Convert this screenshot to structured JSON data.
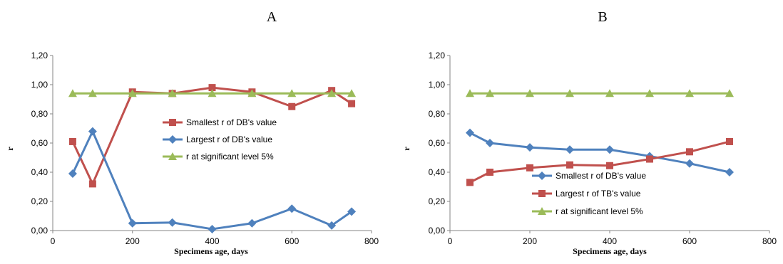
{
  "chart_data": [
    {
      "type": "line",
      "title": "A",
      "xlabel": "Specimens age, days",
      "ylabel": "r",
      "xlim": [
        0,
        800
      ],
      "ylim": [
        0,
        1.2
      ],
      "xticks": [
        0,
        200,
        400,
        600,
        800
      ],
      "xtick_labels": [
        "0",
        "200",
        "400",
        "600",
        "800"
      ],
      "yticks": [
        0,
        0.2,
        0.4,
        0.6,
        0.8,
        1.0,
        1.2
      ],
      "ytick_labels": [
        "0,00",
        "0,20",
        "0,40",
        "0,60",
        "0,80",
        "1,00",
        "1,20"
      ],
      "grid": false,
      "legend_position": "center-right",
      "series": [
        {
          "name": "Smallest r of DB's value",
          "color": "#c0504d",
          "marker": "square",
          "x": [
            50,
            100,
            200,
            300,
            400,
            500,
            600,
            700,
            750
          ],
          "y": [
            0.61,
            0.32,
            0.95,
            0.94,
            0.98,
            0.95,
            0.85,
            0.96,
            0.87
          ]
        },
        {
          "name": "Largest r of DB's value",
          "color": "#4f81bd",
          "marker": "diamond",
          "x": [
            50,
            100,
            200,
            300,
            400,
            500,
            600,
            700,
            750
          ],
          "y": [
            0.39,
            0.68,
            0.05,
            0.055,
            0.01,
            0.05,
            0.15,
            0.035,
            0.13
          ]
        },
        {
          "name": "r at significant level 5%",
          "color": "#9bbb59",
          "marker": "triangle",
          "x": [
            50,
            100,
            200,
            300,
            400,
            500,
            600,
            700,
            750
          ],
          "y": [
            0.94,
            0.94,
            0.94,
            0.94,
            0.94,
            0.94,
            0.94,
            0.94,
            0.94
          ]
        }
      ]
    },
    {
      "type": "line",
      "title": "B",
      "xlabel": "Specimens age, days",
      "ylabel": "r",
      "xlim": [
        0,
        800
      ],
      "ylim": [
        0,
        1.2
      ],
      "xticks": [
        0,
        200,
        400,
        600,
        800
      ],
      "xtick_labels": [
        "0",
        "200",
        "400",
        "600",
        "800"
      ],
      "yticks": [
        0,
        0.2,
        0.4,
        0.6,
        0.8,
        1.0,
        1.2
      ],
      "ytick_labels": [
        "0,00",
        "0,20",
        "0,40",
        "0,60",
        "0,80",
        "1,00",
        "1,20"
      ],
      "grid": false,
      "legend_position": "bottom-right",
      "series": [
        {
          "name": "Smallest r of DB's value",
          "color": "#4f81bd",
          "marker": "diamond",
          "x": [
            50,
            100,
            200,
            300,
            400,
            500,
            600,
            700
          ],
          "y": [
            0.67,
            0.6,
            0.57,
            0.555,
            0.555,
            0.51,
            0.46,
            0.4
          ]
        },
        {
          "name": "Largest r of TB's value",
          "color": "#c0504d",
          "marker": "square",
          "x": [
            50,
            100,
            200,
            300,
            400,
            500,
            600,
            700
          ],
          "y": [
            0.33,
            0.4,
            0.43,
            0.45,
            0.445,
            0.49,
            0.54,
            0.61
          ]
        },
        {
          "name": "r at significant level 5%",
          "color": "#9bbb59",
          "marker": "triangle",
          "x": [
            50,
            100,
            200,
            300,
            400,
            500,
            600,
            700
          ],
          "y": [
            0.94,
            0.94,
            0.94,
            0.94,
            0.94,
            0.94,
            0.94,
            0.94
          ]
        }
      ]
    }
  ]
}
